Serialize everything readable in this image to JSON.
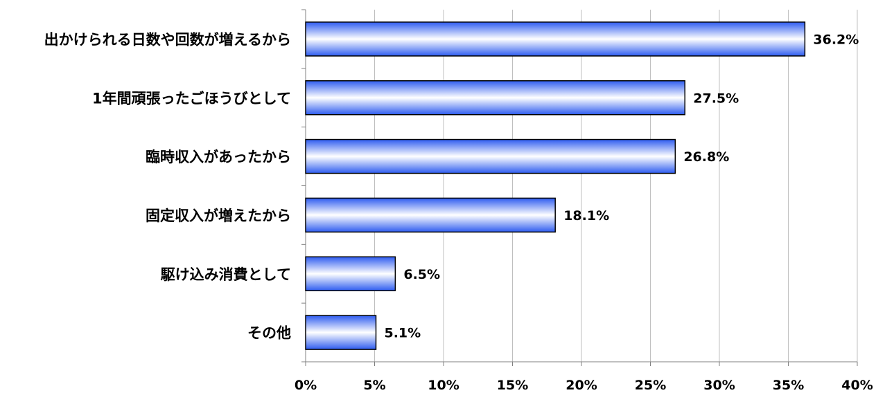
{
  "chart_data": {
    "type": "bar",
    "orientation": "horizontal",
    "categories": [
      "出かけられる日数や回数が増えるから",
      "1年間頑張ったごほうびとして",
      "臨時収入があったから",
      "固定収入が増えたから",
      "駆け込み消費として",
      "その他"
    ],
    "values": [
      36.2,
      27.5,
      26.8,
      18.1,
      6.5,
      5.1
    ],
    "value_labels": [
      "36.2%",
      "27.5%",
      "26.8%",
      "18.1%",
      "6.5%",
      "5.1%"
    ],
    "xlim": [
      0,
      40
    ],
    "xticks": [
      0,
      5,
      10,
      15,
      20,
      25,
      30,
      35,
      40
    ],
    "xtick_labels": [
      "0%",
      "5%",
      "10%",
      "15%",
      "20%",
      "25%",
      "30%",
      "35%",
      "40%"
    ],
    "grid": true,
    "legend": "none",
    "colors": {
      "bar_edge": "#2e5cf0",
      "bar_center": "#ffffff",
      "bar_outline": "#000000",
      "grid": "#bfbfbf",
      "axis": "#808080"
    }
  }
}
